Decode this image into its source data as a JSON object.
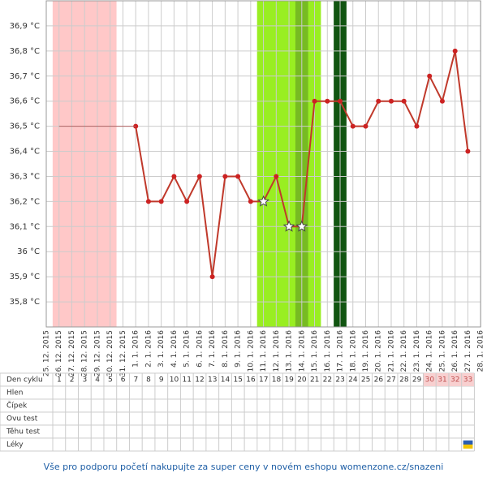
{
  "chart_data": {
    "type": "line",
    "x": [
      "25. 12. 2015",
      "26. 12. 2015",
      "27. 12. 2015",
      "28. 12. 2015",
      "29. 12. 2015",
      "30. 12. 2015",
      "31. 12. 2015",
      "1. 1. 2016",
      "2. 1. 2016",
      "3. 1. 2016",
      "4. 1. 2016",
      "5. 1. 2016",
      "6. 1. 2016",
      "7. 1. 2016",
      "8. 1. 2016",
      "9. 1. 2016",
      "10. 1. 2016",
      "11. 1. 2016",
      "12. 1. 2016",
      "13. 1. 2016",
      "14. 1. 2016",
      "15. 1. 2016",
      "16. 1. 2016",
      "17. 1. 2016",
      "18. 1. 2016",
      "19. 1. 2016",
      "20. 1. 2016",
      "21. 1. 2016",
      "22. 1. 2016",
      "23. 1. 2016",
      "24. 1. 2016",
      "25. 1. 2016",
      "26. 1. 2016",
      "27. 1. 2016",
      "28. 1. 2016"
    ],
    "series": [
      {
        "color": "#c0392b",
        "values": [
          null,
          null,
          null,
          null,
          null,
          null,
          null,
          36.5,
          36.2,
          36.2,
          36.3,
          36.2,
          36.3,
          35.9,
          36.3,
          36.3,
          36.2,
          36.2,
          36.3,
          36.1,
          36.1,
          36.6,
          36.6,
          36.6,
          36.5,
          36.5,
          36.6,
          36.6,
          36.6,
          36.5,
          36.7,
          36.6,
          36.8,
          36.4,
          null
        ],
        "star_points": [
          17,
          19,
          20
        ]
      },
      {
        "color": "#b06060",
        "thin": true,
        "values": [
          null,
          36.5,
          36.5,
          36.5,
          36.5,
          36.5,
          36.5,
          36.5,
          null,
          null,
          null,
          null,
          null,
          null,
          null,
          null,
          null,
          null,
          null,
          null,
          null,
          null,
          null,
          null,
          null,
          null,
          null,
          null,
          null,
          null,
          null,
          null,
          null,
          null,
          null
        ]
      }
    ],
    "bands": [
      {
        "from": "26. 12. 2015",
        "to": "30. 12. 2015",
        "color": "#ffc8c8"
      },
      {
        "from": "11. 1. 2016",
        "to": "15. 1. 2016",
        "color": "#99ee22"
      },
      {
        "from": "14. 1. 2016",
        "to": "14. 1. 2016",
        "color": "#77bb22"
      },
      {
        "from": "17. 1. 2016",
        "to": "17. 1. 2016",
        "color": "#115511"
      }
    ],
    "ylim": [
      35.7,
      37.0
    ],
    "yticks": [
      {
        "value": 35.8,
        "label": "35,8 °C"
      },
      {
        "value": 35.9,
        "label": "35,9 °C"
      },
      {
        "value": 36.0,
        "label": "36 °C"
      },
      {
        "value": 36.1,
        "label": "36,1 °C"
      },
      {
        "value": 36.2,
        "label": "36,2 °C"
      },
      {
        "value": 36.3,
        "label": "36,3 °C"
      },
      {
        "value": 36.4,
        "label": "36,4 °C"
      },
      {
        "value": 36.5,
        "label": "36,5 °C"
      },
      {
        "value": 36.6,
        "label": "36,6 °C"
      },
      {
        "value": 36.7,
        "label": "36,7 °C"
      },
      {
        "value": 36.8,
        "label": "36,8 °C"
      },
      {
        "value": 36.9,
        "label": "36,9 °C"
      }
    ],
    "grid": true
  },
  "table": {
    "rows": [
      "Den cyklu",
      "Hlen",
      "Čípek",
      "Ovu test",
      "Těhu test",
      "Léky"
    ],
    "cycle_days": [
      1,
      2,
      3,
      4,
      5,
      6,
      7,
      8,
      9,
      10,
      11,
      12,
      13,
      14,
      15,
      16,
      17,
      18,
      19,
      20,
      21,
      22,
      23,
      24,
      25,
      26,
      27,
      28,
      29,
      30,
      31,
      32,
      33
    ],
    "overdue_from": 30,
    "medication_day": 33
  },
  "footer": "Vše pro podporu početí nakupujte za super ceny v novém eshopu womenzone.cz/snazeni"
}
